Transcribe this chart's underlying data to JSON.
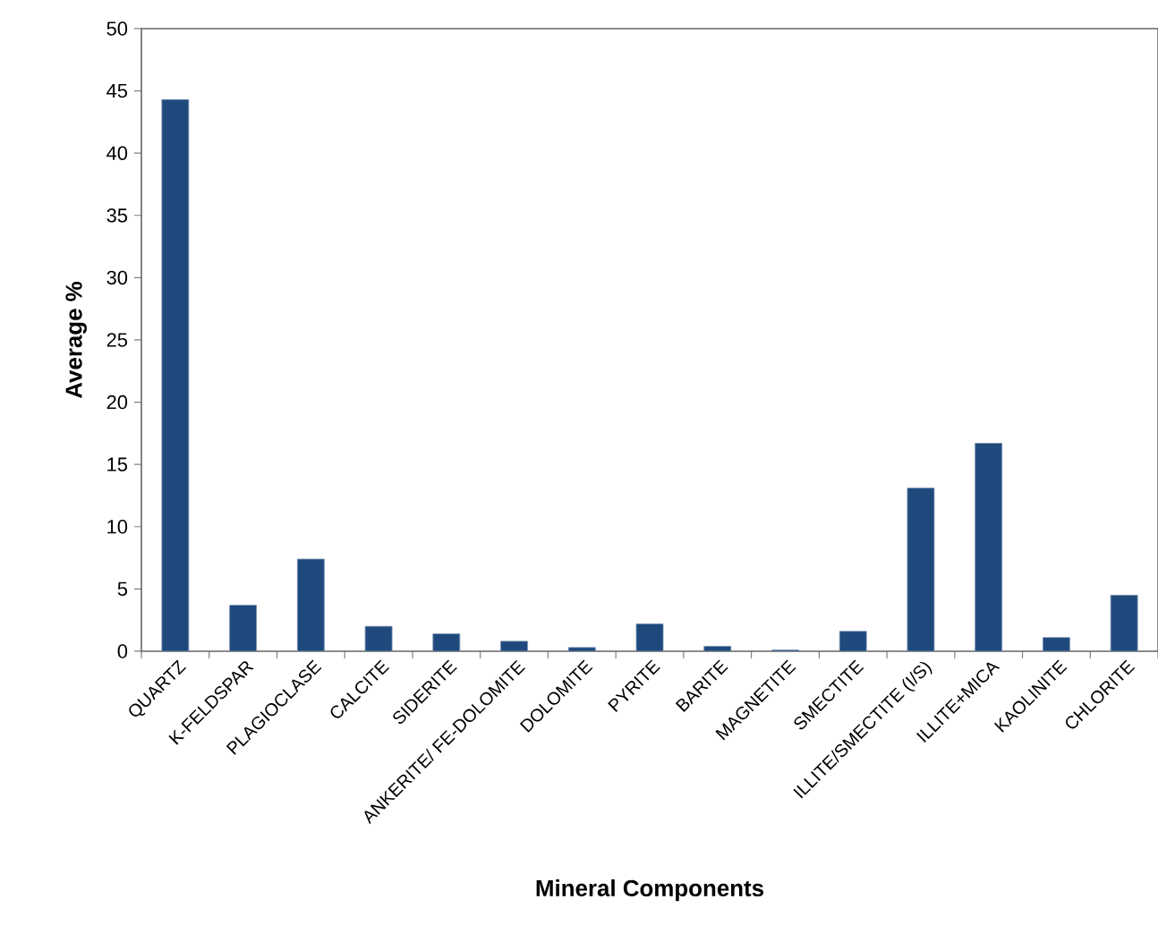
{
  "chart_data": {
    "type": "bar",
    "xlabel": "Mineral Components",
    "ylabel": "Average %",
    "categories": [
      "QUARTZ",
      "K-FELDSPAR",
      "PLAGIOCLASE",
      "CALCITE",
      "SIDERITE",
      "ANKERITE/ FE-DOLOMITE",
      "DOLOMITE",
      "PYRITE",
      "BARITE",
      "MAGNETITE",
      "SMECTITE",
      "ILLITE/SMECTITE (I/S)",
      "ILLITE+MICA",
      "KAOLINITE",
      "CHLORITE"
    ],
    "values": [
      44.3,
      3.7,
      7.4,
      2.0,
      1.4,
      0.8,
      0.3,
      2.2,
      0.4,
      0.1,
      1.6,
      13.1,
      16.7,
      1.1,
      4.5
    ],
    "color": "#1f497d",
    "ylim": [
      0,
      50
    ],
    "yticks": [
      0,
      5,
      10,
      15,
      20,
      25,
      30,
      35,
      40,
      45,
      50
    ],
    "grid": false
  }
}
